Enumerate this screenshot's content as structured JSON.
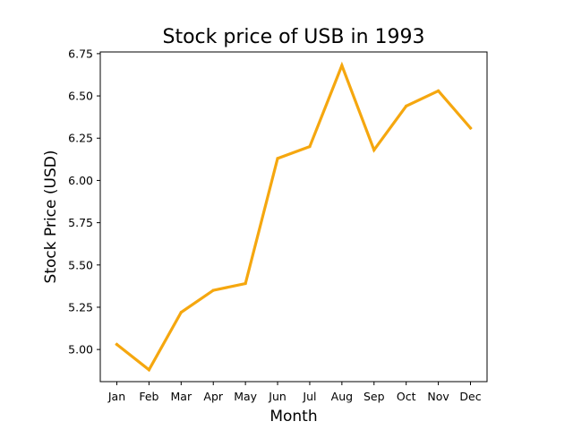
{
  "chart_data": {
    "type": "line",
    "title": "Stock price of USB in 1993",
    "xlabel": "Month",
    "ylabel": "Stock Price (USD)",
    "categories": [
      "Jan",
      "Feb",
      "Mar",
      "Apr",
      "May",
      "Jun",
      "Jul",
      "Aug",
      "Sep",
      "Oct",
      "Nov",
      "Dec"
    ],
    "series": [
      {
        "values": [
          5.03,
          4.88,
          5.22,
          5.35,
          5.39,
          6.13,
          6.2,
          6.68,
          6.18,
          6.44,
          6.53,
          6.31
        ],
        "color": "#f5a70f"
      }
    ],
    "ylim": [
      4.81,
      6.76
    ],
    "yticks": [
      "5.00",
      "5.25",
      "5.50",
      "5.75",
      "6.00",
      "6.25",
      "6.50",
      "6.75"
    ],
    "grid": false,
    "legend": "none"
  }
}
